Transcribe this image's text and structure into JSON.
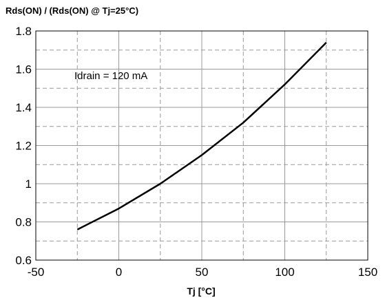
{
  "chart_data": {
    "type": "line",
    "title": "Rds(ON) / (Rds(ON) @ Tj=25°C)",
    "xlabel": "Tj [°C]",
    "ylabel": "",
    "xlim": [
      -50,
      150
    ],
    "ylim": [
      0.6,
      1.8
    ],
    "x_ticks": [
      -50,
      0,
      50,
      100,
      150
    ],
    "x_tick_labels": [
      "-50",
      "0",
      "50",
      "100",
      "150"
    ],
    "y_ticks": [
      0.6,
      0.8,
      1,
      1.2,
      1.4,
      1.6,
      1.8
    ],
    "y_tick_labels": [
      "0.6",
      "0.8",
      "1",
      "1.2",
      "1.4",
      "1.6",
      "1.8"
    ],
    "grid": true,
    "annotation": "Idrain = 120 mA",
    "series": [
      {
        "x": [
          -25,
          0,
          25,
          50,
          75,
          100,
          125
        ],
        "y": [
          0.76,
          0.87,
          1.0,
          1.15,
          1.32,
          1.52,
          1.74
        ],
        "color": "#000000"
      }
    ]
  }
}
